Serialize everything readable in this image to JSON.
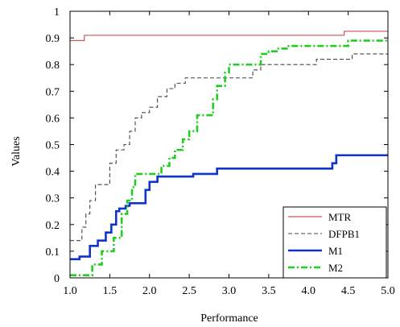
{
  "chart_data": {
    "type": "line",
    "title": "",
    "xlabel": "Performance",
    "ylabel": "Values",
    "xlim": [
      1.0,
      5.0
    ],
    "ylim": [
      0,
      1
    ],
    "x_ticks": [
      "1.0",
      "1.5",
      "2.0",
      "2.5",
      "3.0",
      "3.5",
      "4.0",
      "4.5",
      "5.0"
    ],
    "y_ticks": [
      "0",
      "0.1",
      "0.2",
      "0.3",
      "0.4",
      "0.5",
      "0.6",
      "0.7",
      "0.8",
      "0.9",
      "1"
    ],
    "grid": false,
    "legend_position": "bottom-right",
    "series": [
      {
        "name": "MTR",
        "color": "#cc5555",
        "style": "solid",
        "points": [
          [
            1.0,
            0.89
          ],
          [
            1.18,
            0.89
          ],
          [
            1.18,
            0.91
          ],
          [
            4.45,
            0.91
          ],
          [
            4.45,
            0.925
          ],
          [
            5.0,
            0.925
          ]
        ]
      },
      {
        "name": "DFPB1",
        "color": "#444444",
        "style": "dashed",
        "points": [
          [
            1.0,
            0.14
          ],
          [
            1.15,
            0.14
          ],
          [
            1.15,
            0.19
          ],
          [
            1.2,
            0.19
          ],
          [
            1.2,
            0.24
          ],
          [
            1.25,
            0.24
          ],
          [
            1.25,
            0.29
          ],
          [
            1.32,
            0.29
          ],
          [
            1.32,
            0.35
          ],
          [
            1.5,
            0.35
          ],
          [
            1.5,
            0.43
          ],
          [
            1.58,
            0.43
          ],
          [
            1.58,
            0.48
          ],
          [
            1.68,
            0.48
          ],
          [
            1.68,
            0.5
          ],
          [
            1.75,
            0.5
          ],
          [
            1.75,
            0.55
          ],
          [
            1.82,
            0.55
          ],
          [
            1.82,
            0.6
          ],
          [
            1.9,
            0.6
          ],
          [
            1.9,
            0.62
          ],
          [
            2.0,
            0.62
          ],
          [
            2.0,
            0.64
          ],
          [
            2.1,
            0.64
          ],
          [
            2.1,
            0.68
          ],
          [
            2.22,
            0.68
          ],
          [
            2.22,
            0.71
          ],
          [
            2.32,
            0.71
          ],
          [
            2.32,
            0.73
          ],
          [
            2.45,
            0.73
          ],
          [
            2.45,
            0.75
          ],
          [
            3.3,
            0.75
          ],
          [
            3.3,
            0.78
          ],
          [
            3.4,
            0.78
          ],
          [
            3.4,
            0.8
          ],
          [
            4.1,
            0.8
          ],
          [
            4.1,
            0.82
          ],
          [
            4.55,
            0.82
          ],
          [
            4.55,
            0.84
          ],
          [
            5.0,
            0.84
          ]
        ]
      },
      {
        "name": "M1",
        "color": "#1133cc",
        "style": "solid",
        "points": [
          [
            1.0,
            0.07
          ],
          [
            1.12,
            0.07
          ],
          [
            1.12,
            0.08
          ],
          [
            1.25,
            0.08
          ],
          [
            1.25,
            0.12
          ],
          [
            1.35,
            0.12
          ],
          [
            1.35,
            0.14
          ],
          [
            1.45,
            0.14
          ],
          [
            1.45,
            0.17
          ],
          [
            1.52,
            0.17
          ],
          [
            1.52,
            0.2
          ],
          [
            1.58,
            0.2
          ],
          [
            1.58,
            0.25
          ],
          [
            1.62,
            0.25
          ],
          [
            1.62,
            0.26
          ],
          [
            1.7,
            0.26
          ],
          [
            1.7,
            0.27
          ],
          [
            1.75,
            0.27
          ],
          [
            1.75,
            0.28
          ],
          [
            1.95,
            0.28
          ],
          [
            1.95,
            0.33
          ],
          [
            2.0,
            0.33
          ],
          [
            2.0,
            0.36
          ],
          [
            2.1,
            0.36
          ],
          [
            2.1,
            0.38
          ],
          [
            2.55,
            0.38
          ],
          [
            2.55,
            0.39
          ],
          [
            2.85,
            0.39
          ],
          [
            2.85,
            0.41
          ],
          [
            4.3,
            0.41
          ],
          [
            4.3,
            0.43
          ],
          [
            4.35,
            0.43
          ],
          [
            4.35,
            0.46
          ],
          [
            5.0,
            0.46
          ]
        ]
      },
      {
        "name": "M2",
        "color": "#22cc22",
        "style": "dashdot",
        "points": [
          [
            1.0,
            0.01
          ],
          [
            1.28,
            0.01
          ],
          [
            1.28,
            0.05
          ],
          [
            1.4,
            0.05
          ],
          [
            1.4,
            0.1
          ],
          [
            1.55,
            0.1
          ],
          [
            1.55,
            0.15
          ],
          [
            1.65,
            0.15
          ],
          [
            1.65,
            0.24
          ],
          [
            1.72,
            0.24
          ],
          [
            1.72,
            0.29
          ],
          [
            1.78,
            0.29
          ],
          [
            1.78,
            0.34
          ],
          [
            1.82,
            0.34
          ],
          [
            1.82,
            0.39
          ],
          [
            2.15,
            0.39
          ],
          [
            2.15,
            0.42
          ],
          [
            2.25,
            0.42
          ],
          [
            2.25,
            0.45
          ],
          [
            2.32,
            0.45
          ],
          [
            2.32,
            0.48
          ],
          [
            2.42,
            0.48
          ],
          [
            2.42,
            0.52
          ],
          [
            2.5,
            0.52
          ],
          [
            2.5,
            0.55
          ],
          [
            2.6,
            0.55
          ],
          [
            2.6,
            0.61
          ],
          [
            2.8,
            0.61
          ],
          [
            2.8,
            0.67
          ],
          [
            2.85,
            0.67
          ],
          [
            2.85,
            0.72
          ],
          [
            2.95,
            0.72
          ],
          [
            2.95,
            0.77
          ],
          [
            3.0,
            0.77
          ],
          [
            3.0,
            0.8
          ],
          [
            3.4,
            0.8
          ],
          [
            3.4,
            0.84
          ],
          [
            3.5,
            0.84
          ],
          [
            3.5,
            0.85
          ],
          [
            3.6,
            0.85
          ],
          [
            3.6,
            0.86
          ],
          [
            3.75,
            0.86
          ],
          [
            3.75,
            0.87
          ],
          [
            4.5,
            0.87
          ],
          [
            4.5,
            0.89
          ],
          [
            5.0,
            0.89
          ]
        ]
      }
    ]
  }
}
